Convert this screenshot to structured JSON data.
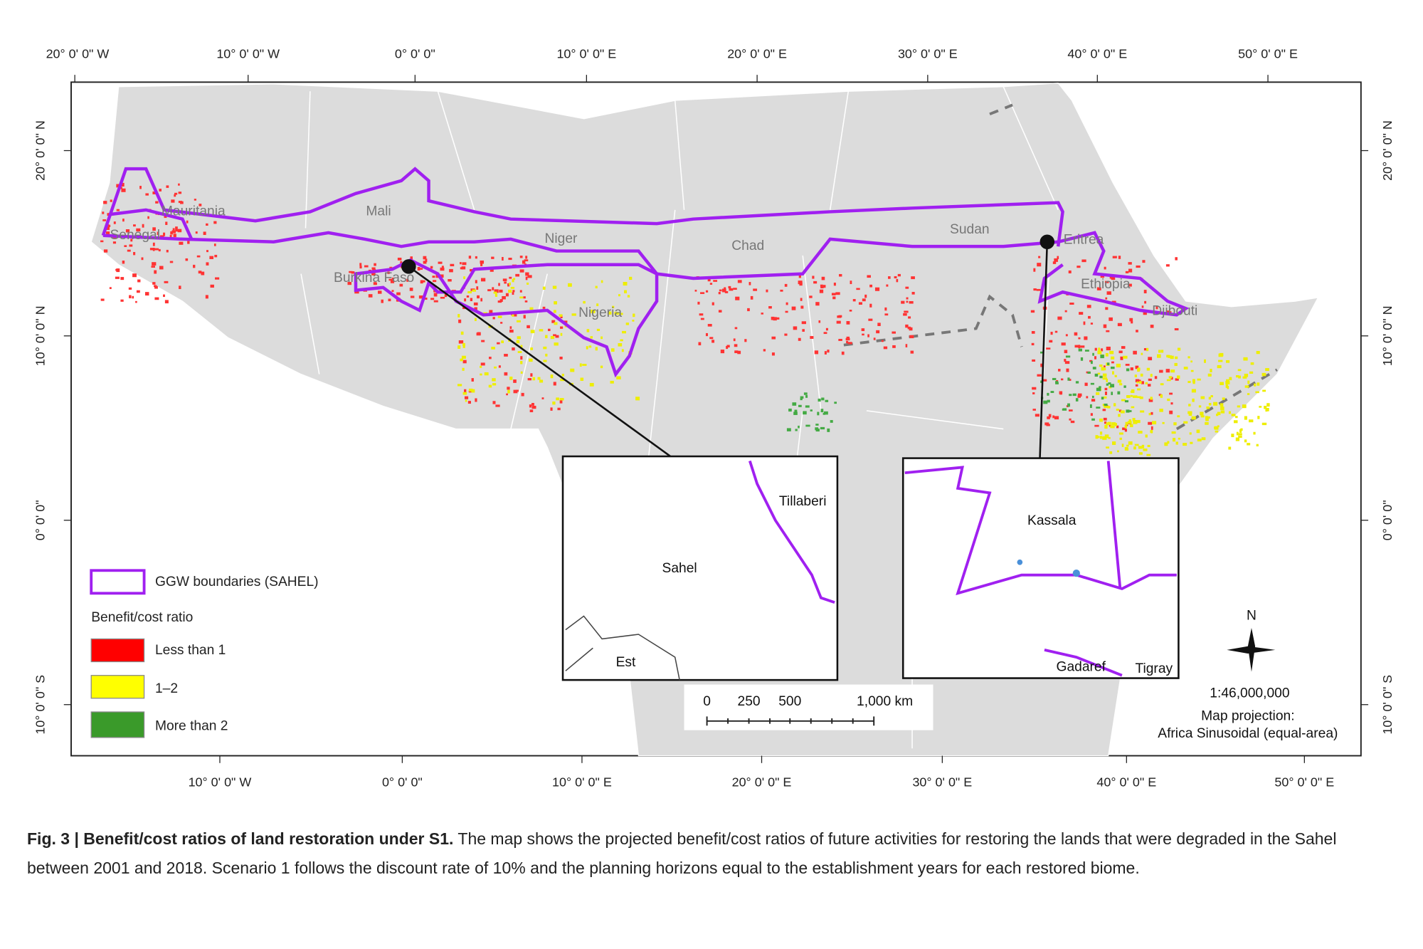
{
  "axes": {
    "top": [
      "20° 0' 0\" W",
      "10° 0' 0\" W",
      "0° 0' 0\"",
      "10° 0' 0\" E",
      "20° 0' 0\" E",
      "30° 0' 0\" E",
      "40° 0' 0\" E",
      "50° 0' 0\" E"
    ],
    "bottom": [
      "10° 0' 0\" W",
      "0° 0' 0\"",
      "10° 0' 0\" E",
      "20° 0' 0\" E",
      "30° 0' 0\" E",
      "40° 0' 0\" E",
      "50° 0' 0\" E"
    ],
    "left": [
      "20° 0' 0\" N",
      "10° 0' 0\" N",
      "0° 0' 0\"",
      "10° 0' 0\" S"
    ],
    "right": [
      "20° 0' 0\" N",
      "10° 0' 0\" N",
      "0° 0' 0\"",
      "10° 0' 0\" S"
    ]
  },
  "places": [
    "Mauritania",
    "Senegal",
    "Mali",
    "Niger",
    "Chad",
    "Sudan",
    "Eritrea",
    "Burkina Faso",
    "Nigeria",
    "Ethiopia",
    "Djibouti"
  ],
  "insets": [
    {
      "places": [
        "Tillaberi",
        "Sahel",
        "Est"
      ]
    },
    {
      "places": [
        "Kassala",
        "Gadaref",
        "Tigray"
      ]
    }
  ],
  "legend": {
    "boundary": "GGW boundaries (SAHEL)",
    "title": "Benefit/cost ratio",
    "classes": [
      "Less than 1",
      "1–2",
      "More than 2"
    ]
  },
  "scale_bar": [
    "0",
    "250",
    "500",
    "1,000 km"
  ],
  "north": "N",
  "scale": "1:46,000,000",
  "projection": [
    "Map projection:",
    "Africa Sinusoidal (equal-area)"
  ],
  "caption": {
    "title": "Fig. 3 | Benefit/cost ratios of land restoration under S1.",
    "text": "The map shows the projected benefit/cost ratios of future activities for restoring the lands that were degraded in the Sahel between 2001 and 2018. Scenario 1 follows the discount rate of 10% and the planning horizons equal to the establishment years for each restored biome."
  }
}
